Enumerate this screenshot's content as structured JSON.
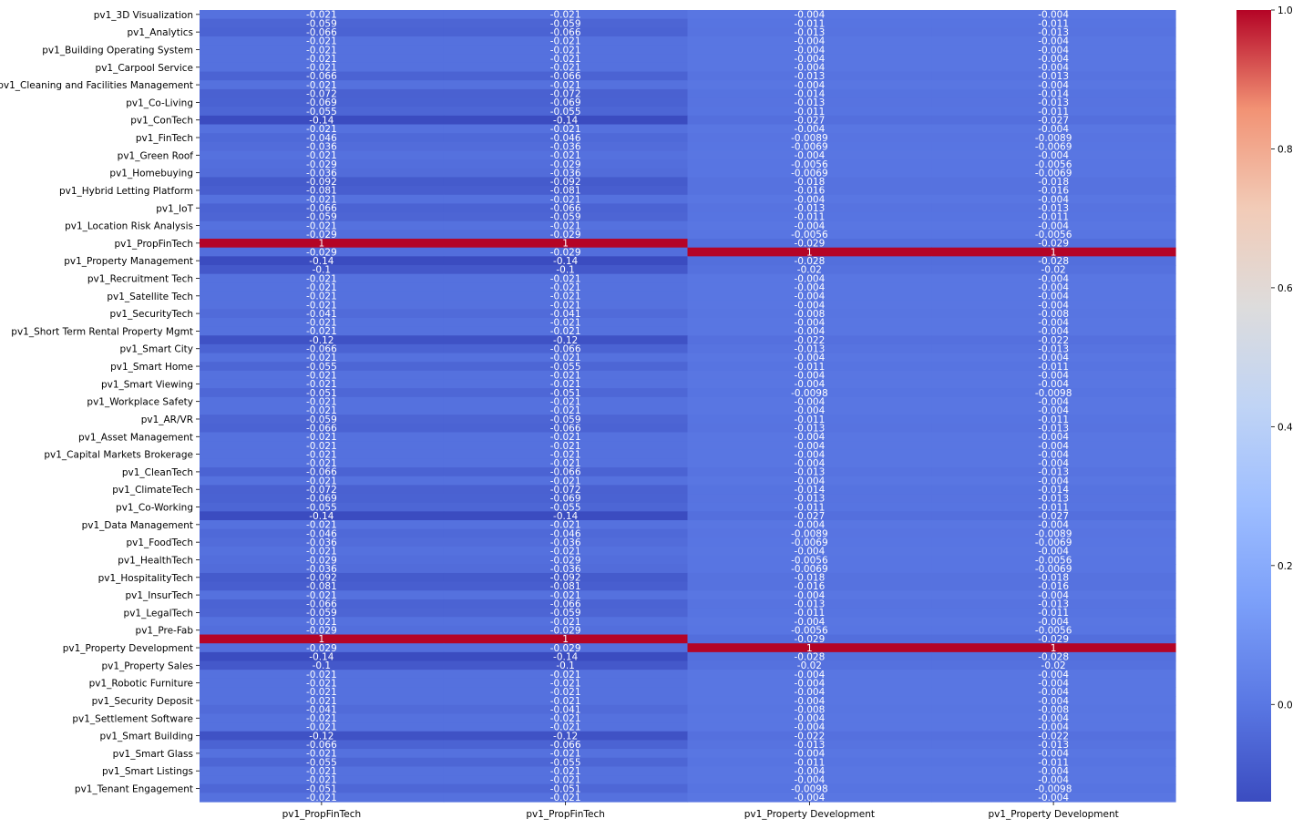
{
  "chart_data": {
    "type": "heatmap",
    "title": "",
    "xlabel": "",
    "ylabel": "",
    "columns": [
      "pv1_PropFinTech",
      "pv1_PropFinTech",
      "pv1_Property Development",
      "pv1_Property Development"
    ],
    "row_tick_labels": [
      "pv1_3D Visualization",
      "pv1_Analytics",
      "pv1_Building Operating System",
      "pv1_Carpool Service",
      "pv1_Cleaning and Facilities Management",
      "pv1_Co-Living",
      "pv1_ConTech",
      "pv1_FinTech",
      "pv1_Green Roof",
      "pv1_Homebuying",
      "pv1_Hybrid Letting Platform",
      "pv1_IoT",
      "pv1_Location Risk Analysis",
      "pv1_PropFinTech",
      "pv1_Property Management",
      "pv1_Recruitment Tech",
      "pv1_Satellite Tech",
      "pv1_SecurityTech",
      "pv1_Short Term Rental Property Mgmt",
      "pv1_Smart City",
      "pv1_Smart Home",
      "pv1_Smart Viewing",
      "pv1_Workplace Safety",
      "pv1_AR/VR",
      "pv1_Asset Management",
      "pv1_Capital Markets Brokerage",
      "pv1_CleanTech",
      "pv1_ClimateTech",
      "pv1_Co-Working",
      "pv1_Data Management",
      "pv1_FoodTech",
      "pv1_HealthTech",
      "pv1_HospitalityTech",
      "pv1_InsurTech",
      "pv1_LegalTech",
      "pv1_Pre-Fab",
      "pv1_Property Development",
      "pv1_Property Sales",
      "pv1_Robotic Furniture",
      "pv1_Security Deposit",
      "pv1_Settlement Software",
      "pv1_Smart Building",
      "pv1_Smart Glass",
      "pv1_Smart Listings",
      "pv1_Tenant Engagement"
    ],
    "values": [
      [
        "-0.021",
        "-0.021",
        "-0.004",
        "-0.004"
      ],
      [
        "-0.059",
        "-0.059",
        "-0.011",
        "-0.011"
      ],
      [
        "-0.066",
        "-0.066",
        "-0.013",
        "-0.013"
      ],
      [
        "-0.021",
        "-0.021",
        "-0.004",
        "-0.004"
      ],
      [
        "-0.021",
        "-0.021",
        "-0.004",
        "-0.004"
      ],
      [
        "-0.021",
        "-0.021",
        "-0.004",
        "-0.004"
      ],
      [
        "-0.021",
        "-0.021",
        "-0.004",
        "-0.004"
      ],
      [
        "-0.066",
        "-0.066",
        "-0.013",
        "-0.013"
      ],
      [
        "-0.021",
        "-0.021",
        "-0.004",
        "-0.004"
      ],
      [
        "-0.072",
        "-0.072",
        "-0.014",
        "-0.014"
      ],
      [
        "-0.069",
        "-0.069",
        "-0.013",
        "-0.013"
      ],
      [
        "-0.055",
        "-0.055",
        "-0.011",
        "-0.011"
      ],
      [
        "-0.14",
        "-0.14",
        "-0.027",
        "-0.027"
      ],
      [
        "-0.021",
        "-0.021",
        "-0.004",
        "-0.004"
      ],
      [
        "-0.046",
        "-0.046",
        "-0.0089",
        "-0.0089"
      ],
      [
        "-0.036",
        "-0.036",
        "-0.0069",
        "-0.0069"
      ],
      [
        "-0.021",
        "-0.021",
        "-0.004",
        "-0.004"
      ],
      [
        "-0.029",
        "-0.029",
        "-0.0056",
        "-0.0056"
      ],
      [
        "-0.036",
        "-0.036",
        "-0.0069",
        "-0.0069"
      ],
      [
        "-0.092",
        "-0.092",
        "-0.018",
        "-0.018"
      ],
      [
        "-0.081",
        "-0.081",
        "-0.016",
        "-0.016"
      ],
      [
        "-0.021",
        "-0.021",
        "-0.004",
        "-0.004"
      ],
      [
        "-0.066",
        "-0.066",
        "-0.013",
        "-0.013"
      ],
      [
        "-0.059",
        "-0.059",
        "-0.011",
        "-0.011"
      ],
      [
        "-0.021",
        "-0.021",
        "-0.004",
        "-0.004"
      ],
      [
        "-0.029",
        "-0.029",
        "-0.0056",
        "-0.0056"
      ],
      [
        "1",
        "1",
        "-0.029",
        "-0.029"
      ],
      [
        "-0.029",
        "-0.029",
        "1",
        "1"
      ],
      [
        "-0.14",
        "-0.14",
        "-0.028",
        "-0.028"
      ],
      [
        "-0.1",
        "-0.1",
        "-0.02",
        "-0.02"
      ],
      [
        "-0.021",
        "-0.021",
        "-0.004",
        "-0.004"
      ],
      [
        "-0.021",
        "-0.021",
        "-0.004",
        "-0.004"
      ],
      [
        "-0.021",
        "-0.021",
        "-0.004",
        "-0.004"
      ],
      [
        "-0.021",
        "-0.021",
        "-0.004",
        "-0.004"
      ],
      [
        "-0.041",
        "-0.041",
        "-0.008",
        "-0.008"
      ],
      [
        "-0.021",
        "-0.021",
        "-0.004",
        "-0.004"
      ],
      [
        "-0.021",
        "-0.021",
        "-0.004",
        "-0.004"
      ],
      [
        "-0.12",
        "-0.12",
        "-0.022",
        "-0.022"
      ],
      [
        "-0.066",
        "-0.066",
        "-0.013",
        "-0.013"
      ],
      [
        "-0.021",
        "-0.021",
        "-0.004",
        "-0.004"
      ],
      [
        "-0.055",
        "-0.055",
        "-0.011",
        "-0.011"
      ],
      [
        "-0.021",
        "-0.021",
        "-0.004",
        "-0.004"
      ],
      [
        "-0.021",
        "-0.021",
        "-0.004",
        "-0.004"
      ],
      [
        "-0.051",
        "-0.051",
        "-0.0098",
        "-0.0098"
      ],
      [
        "-0.021",
        "-0.021",
        "-0.004",
        "-0.004"
      ],
      [
        "-0.021",
        "-0.021",
        "-0.004",
        "-0.004"
      ],
      [
        "-0.059",
        "-0.059",
        "-0.011",
        "-0.011"
      ],
      [
        "-0.066",
        "-0.066",
        "-0.013",
        "-0.013"
      ],
      [
        "-0.021",
        "-0.021",
        "-0.004",
        "-0.004"
      ],
      [
        "-0.021",
        "-0.021",
        "-0.004",
        "-0.004"
      ],
      [
        "-0.021",
        "-0.021",
        "-0.004",
        "-0.004"
      ],
      [
        "-0.021",
        "-0.021",
        "-0.004",
        "-0.004"
      ],
      [
        "-0.066",
        "-0.066",
        "-0.013",
        "-0.013"
      ],
      [
        "-0.021",
        "-0.021",
        "-0.004",
        "-0.004"
      ],
      [
        "-0.072",
        "-0.072",
        "-0.014",
        "-0.014"
      ],
      [
        "-0.069",
        "-0.069",
        "-0.013",
        "-0.013"
      ],
      [
        "-0.055",
        "-0.055",
        "-0.011",
        "-0.011"
      ],
      [
        "-0.14",
        "-0.14",
        "-0.027",
        "-0.027"
      ],
      [
        "-0.021",
        "-0.021",
        "-0.004",
        "-0.004"
      ],
      [
        "-0.046",
        "-0.046",
        "-0.0089",
        "-0.0089"
      ],
      [
        "-0.036",
        "-0.036",
        "-0.0069",
        "-0.0069"
      ],
      [
        "-0.021",
        "-0.021",
        "-0.004",
        "-0.004"
      ],
      [
        "-0.029",
        "-0.029",
        "-0.0056",
        "-0.0056"
      ],
      [
        "-0.036",
        "-0.036",
        "-0.0069",
        "-0.0069"
      ],
      [
        "-0.092",
        "-0.092",
        "-0.018",
        "-0.018"
      ],
      [
        "-0.081",
        "-0.081",
        "-0.016",
        "-0.016"
      ],
      [
        "-0.021",
        "-0.021",
        "-0.004",
        "-0.004"
      ],
      [
        "-0.066",
        "-0.066",
        "-0.013",
        "-0.013"
      ],
      [
        "-0.059",
        "-0.059",
        "-0.011",
        "-0.011"
      ],
      [
        "-0.021",
        "-0.021",
        "-0.004",
        "-0.004"
      ],
      [
        "-0.029",
        "-0.029",
        "-0.0056",
        "-0.0056"
      ],
      [
        "1",
        "1",
        "-0.029",
        "-0.029"
      ],
      [
        "-0.029",
        "-0.029",
        "1",
        "1"
      ],
      [
        "-0.14",
        "-0.14",
        "-0.028",
        "-0.028"
      ],
      [
        "-0.1",
        "-0.1",
        "-0.02",
        "-0.02"
      ],
      [
        "-0.021",
        "-0.021",
        "-0.004",
        "-0.004"
      ],
      [
        "-0.021",
        "-0.021",
        "-0.004",
        "-0.004"
      ],
      [
        "-0.021",
        "-0.021",
        "-0.004",
        "-0.004"
      ],
      [
        "-0.021",
        "-0.021",
        "-0.004",
        "-0.004"
      ],
      [
        "-0.041",
        "-0.041",
        "-0.008",
        "-0.008"
      ],
      [
        "-0.021",
        "-0.021",
        "-0.004",
        "-0.004"
      ],
      [
        "-0.021",
        "-0.021",
        "-0.004",
        "-0.004"
      ],
      [
        "-0.12",
        "-0.12",
        "-0.022",
        "-0.022"
      ],
      [
        "-0.066",
        "-0.066",
        "-0.013",
        "-0.013"
      ],
      [
        "-0.021",
        "-0.021",
        "-0.004",
        "-0.004"
      ],
      [
        "-0.055",
        "-0.055",
        "-0.011",
        "-0.011"
      ],
      [
        "-0.021",
        "-0.021",
        "-0.004",
        "-0.004"
      ],
      [
        "-0.021",
        "-0.021",
        "-0.004",
        "-0.004"
      ],
      [
        "-0.051",
        "-0.051",
        "-0.0098",
        "-0.0098"
      ],
      [
        "-0.021",
        "-0.021",
        "-0.004",
        "-0.004"
      ]
    ],
    "colormap": "coolwarm",
    "vmin": -0.14,
    "vmax": 1.0,
    "colorbar_ticks": [
      "1.0",
      "0.8",
      "0.6",
      "0.4",
      "0.2",
      "0.0"
    ],
    "colorbar_tick_values": [
      1.0,
      0.8,
      0.6,
      0.4,
      0.2,
      0.0
    ]
  }
}
